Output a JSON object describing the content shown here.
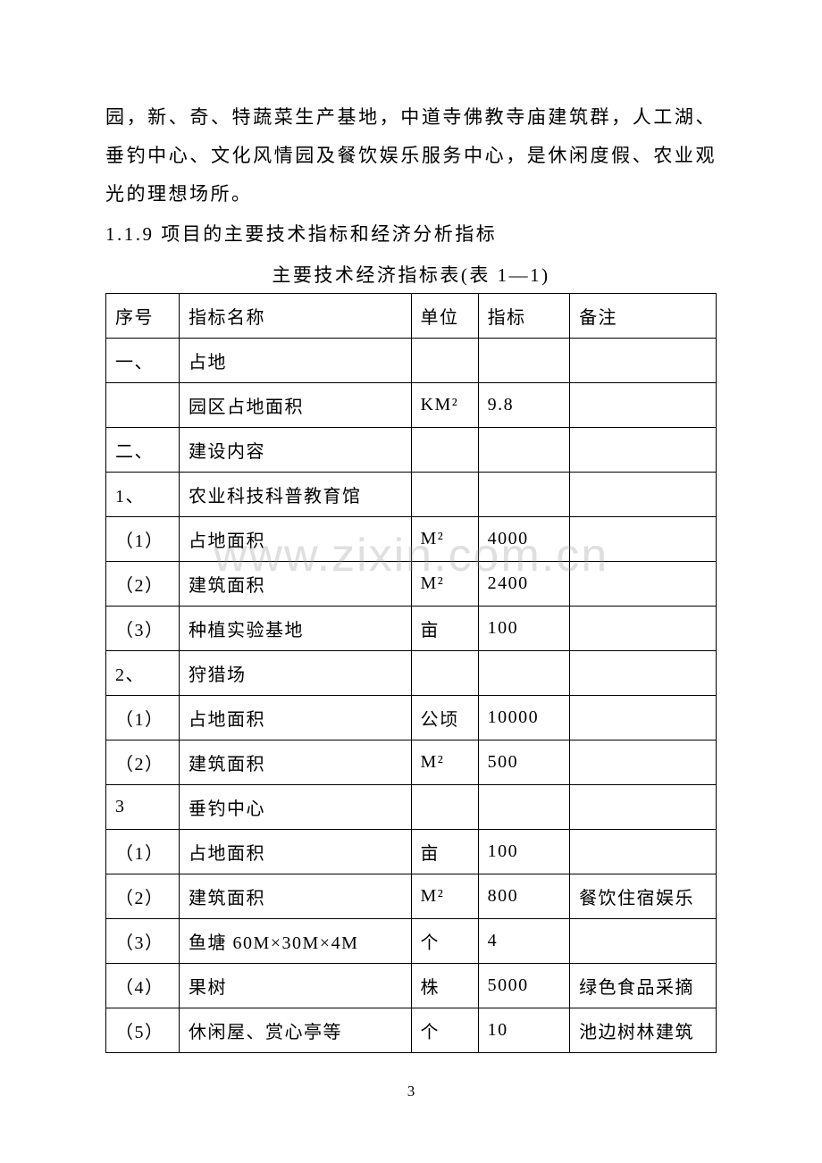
{
  "paragraph": {
    "text": "园，新、奇、特蔬菜生产基地，中道寺佛教寺庙建筑群，人工湖、垂钓中心、文化风情园及餐饮娱乐服务中心，是休闲度假、农业观光的理想场所。"
  },
  "section": {
    "heading": "1.1.9 项目的主要技术指标和经济分析指标"
  },
  "table": {
    "caption": "主要技术经济指标表(表 1—1)",
    "header": {
      "seq": "序号",
      "name": "指标名称",
      "unit": "单位",
      "value": "指标",
      "note": "备注"
    },
    "rows": [
      {
        "seq": "一、",
        "name": "占地",
        "unit": "",
        "value": "",
        "note": ""
      },
      {
        "seq": "",
        "name": "园区占地面积",
        "unit": "KM²",
        "value": "9.8",
        "note": ""
      },
      {
        "seq": "二、",
        "name": "建设内容",
        "unit": "",
        "value": "",
        "note": ""
      },
      {
        "seq": "1、",
        "name": "农业科技科普教育馆",
        "unit": "",
        "value": "",
        "note": ""
      },
      {
        "seq": "（1）",
        "name": "占地面积",
        "unit": "M²",
        "value": "4000",
        "note": ""
      },
      {
        "seq": "（2）",
        "name": "建筑面积",
        "unit": "M²",
        "value": "2400",
        "note": ""
      },
      {
        "seq": "（3）",
        "name": "种植实验基地",
        "unit": "亩",
        "value": "100",
        "note": ""
      },
      {
        "seq": "2、",
        "name": "狩猎场",
        "unit": "",
        "value": "",
        "note": ""
      },
      {
        "seq": "（1）",
        "name": "占地面积",
        "unit": "公顷",
        "value": "10000",
        "note": ""
      },
      {
        "seq": "（2）",
        "name": "建筑面积",
        "unit": "M²",
        "value": "500",
        "note": ""
      },
      {
        "seq": "3",
        "name": "垂钓中心",
        "unit": "",
        "value": "",
        "note": ""
      },
      {
        "seq": "（1）",
        "name": "占地面积",
        "unit": "亩",
        "value": "100",
        "note": ""
      },
      {
        "seq": "（2）",
        "name": "建筑面积",
        "unit": "M²",
        "value": "800",
        "note": "餐饮住宿娱乐"
      },
      {
        "seq": "（3）",
        "name": "鱼塘 60M×30M×4M",
        "unit": "个",
        "value": "4",
        "note": ""
      },
      {
        "seq": "（4）",
        "name": "果树",
        "unit": "株",
        "value": "5000",
        "note": "绿色食品采摘"
      },
      {
        "seq": "（5）",
        "name": "休闲屋、赏心亭等",
        "unit": "个",
        "value": "10",
        "note": "池边树林建筑"
      }
    ]
  },
  "watermark": {
    "text": "www.zixin.com.cn"
  },
  "pageNumber": {
    "text": "3"
  }
}
